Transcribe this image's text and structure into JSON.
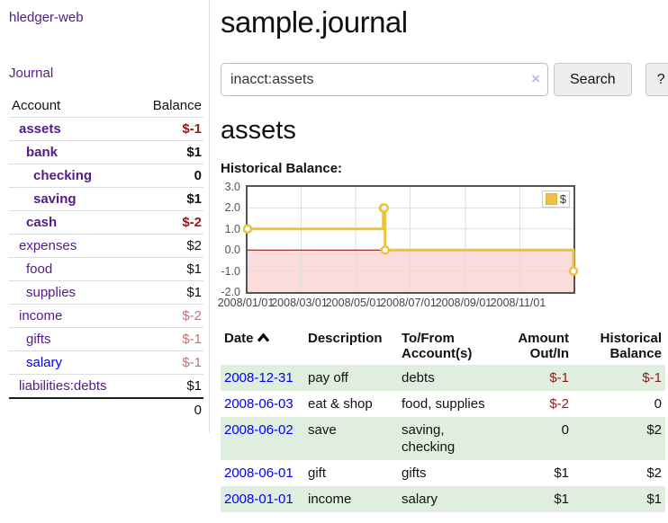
{
  "brand": "hledger-web",
  "nav": {
    "journal": "Journal"
  },
  "sidebar": {
    "headers": {
      "account": "Account",
      "balance": "Balance"
    },
    "rows": [
      {
        "account": "assets",
        "balance": "$-1"
      },
      {
        "account": "bank",
        "balance": "$1"
      },
      {
        "account": "checking",
        "balance": "0"
      },
      {
        "account": "saving",
        "balance": "$1"
      },
      {
        "account": "cash",
        "balance": "$-2"
      },
      {
        "account": "expenses",
        "balance": "$2"
      },
      {
        "account": "food",
        "balance": "$1"
      },
      {
        "account": "supplies",
        "balance": "$1"
      },
      {
        "account": "income",
        "balance": "$-2"
      },
      {
        "account": "gifts",
        "balance": "$-1"
      },
      {
        "account": "salary",
        "balance": "$-1"
      },
      {
        "account": "liabilities:debts",
        "balance": "$1"
      }
    ],
    "total": "0"
  },
  "header": {
    "title": "sample.journal"
  },
  "search": {
    "value": "inacct:assets",
    "clear_label": "×",
    "button": "Search",
    "help": "?"
  },
  "account": {
    "heading": "assets",
    "chart_title": "Historical Balance:"
  },
  "chart_data": {
    "type": "line",
    "step": true,
    "title": "Historical Balance",
    "legend": [
      {
        "label": "$",
        "color": "#edc240"
      }
    ],
    "x": [
      "2008-01-01",
      "2008-06-01",
      "2008-06-02",
      "2008-06-03",
      "2008-12-31"
    ],
    "values": [
      1,
      2,
      2,
      0,
      -1
    ],
    "x_domain": [
      "2008-01-01",
      "2008-12-31"
    ],
    "ylim": [
      -2,
      3
    ],
    "y_ticks": [
      3.0,
      2.0,
      1.0,
      0.0,
      -1.0,
      -2.0
    ],
    "x_tick_dates": [
      "2008-01-01",
      "2008-03-01",
      "2008-05-01",
      "2008-07-01",
      "2008-09-01",
      "2008-11-01"
    ],
    "x_tick_labels": [
      "2008/01/01",
      "2008/03/01",
      "2008/05/01",
      "2008/07/01",
      "2008/09/01",
      "2008/11/01"
    ],
    "grid": true,
    "legend_position": "top-right",
    "colors": {
      "series": "#edc240",
      "marker_fill": "#ffffff",
      "negative_region": "#fadcdc",
      "zero_line": "#8b0000",
      "grid": "#dedede",
      "border": "#545454"
    }
  },
  "register": {
    "headers": {
      "date": "Date",
      "description": "Description",
      "accounts": "To/From Account(s)",
      "amount": "Amount Out/In",
      "balance": "Historical Balance"
    },
    "rows": [
      {
        "date": "2008-12-31",
        "description": "pay off",
        "accounts": "debts",
        "amount": "$-1",
        "balance": "$-1"
      },
      {
        "date": "2008-06-03",
        "description": "eat & shop",
        "accounts": "food, supplies",
        "amount": "$-2",
        "balance": "0"
      },
      {
        "date": "2008-06-02",
        "description": "save",
        "accounts": "saving, checking",
        "amount": "0",
        "balance": "$2"
      },
      {
        "date": "2008-06-01",
        "description": "gift",
        "accounts": "gifts",
        "amount": "$1",
        "balance": "$2"
      },
      {
        "date": "2008-01-01",
        "description": "income",
        "accounts": "salary",
        "amount": "$1",
        "balance": "$1"
      }
    ]
  },
  "colors": {
    "link_purple": "#551a8b",
    "link_blue": "#0000ee",
    "negative_strong": "#8f1a1a",
    "negative_soft": "#bd7575",
    "row_green": "#e0eee0",
    "series_gold": "#edc240"
  }
}
